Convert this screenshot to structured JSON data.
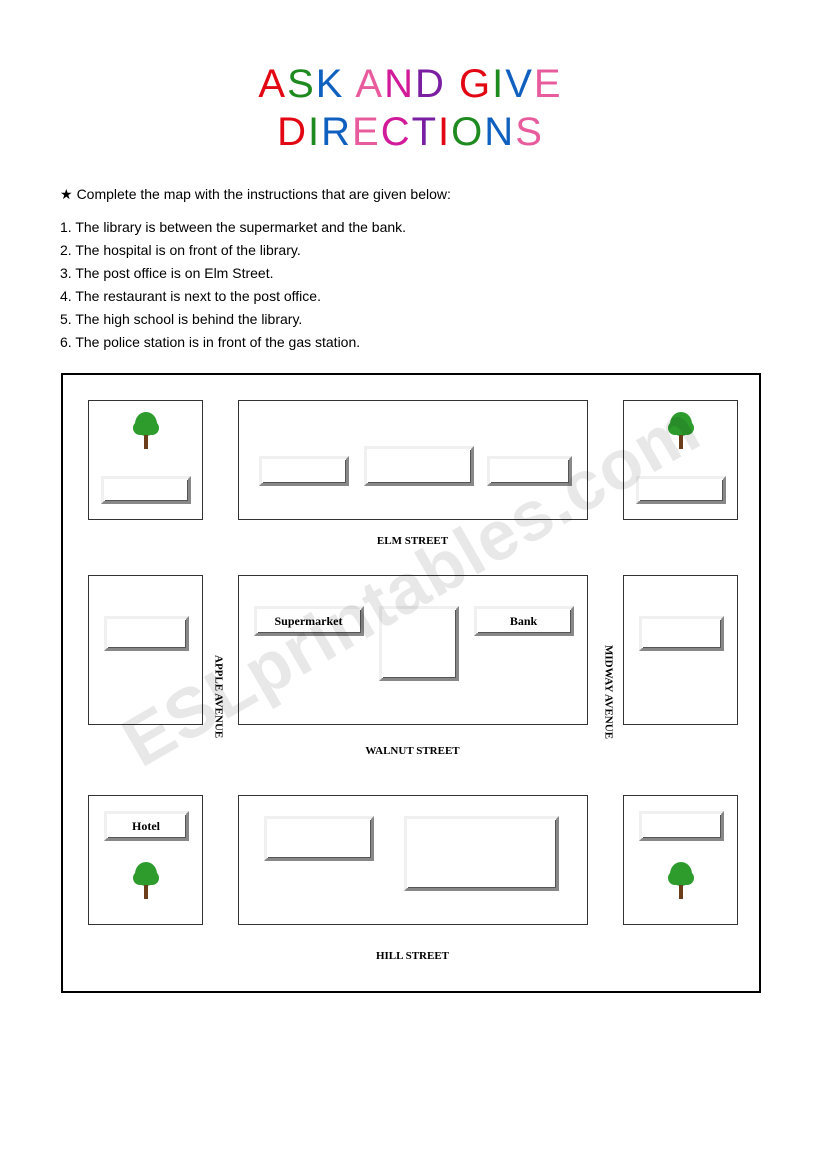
{
  "title": {
    "line1": [
      {
        "ch": "A",
        "c": "#e30613"
      },
      {
        "ch": "S",
        "c": "#1f8a1f"
      },
      {
        "ch": "K",
        "c": "#1060c0"
      },
      {
        "ch": " ",
        "c": "#000"
      },
      {
        "ch": "A",
        "c": "#e85c9e"
      },
      {
        "ch": "N",
        "c": "#d11b9a"
      },
      {
        "ch": "D",
        "c": "#7a1fa2"
      },
      {
        "ch": " ",
        "c": "#000"
      },
      {
        "ch": "G",
        "c": "#e30613"
      },
      {
        "ch": "I",
        "c": "#1f8a1f"
      },
      {
        "ch": "V",
        "c": "#1060c0"
      },
      {
        "ch": "E",
        "c": "#e85c9e"
      }
    ],
    "line2": [
      {
        "ch": "D",
        "c": "#e30613"
      },
      {
        "ch": "I",
        "c": "#1f8a1f"
      },
      {
        "ch": "R",
        "c": "#1060c0"
      },
      {
        "ch": "E",
        "c": "#e85c9e"
      },
      {
        "ch": "C",
        "c": "#d11b9a"
      },
      {
        "ch": "T",
        "c": "#7a1fa2"
      },
      {
        "ch": "I",
        "c": "#e30613"
      },
      {
        "ch": "O",
        "c": "#1f8a1f"
      },
      {
        "ch": "N",
        "c": "#1060c0"
      },
      {
        "ch": "S",
        "c": "#e85c9e"
      }
    ]
  },
  "instruction": "Complete the map with the instructions that are given below:",
  "clues": [
    "1. The library is between the supermarket and the bank.",
    "2. The hospital is on front of the library.",
    "3. The post office is on Elm Street.",
    "4. The restaurant is next to the post office.",
    "5. The high school is behind the library.",
    "6. The police station is in front of the gas station."
  ],
  "labels": {
    "supermarket": "Supermarket",
    "bank": "Bank",
    "hotel": "Hotel"
  },
  "streets": {
    "elm": "ELM STREET",
    "walnut": "WALNUT STREET",
    "hill": "HILL STREET",
    "apple": "APPLE AVENUE",
    "midway": "MIDWAY AVENUE"
  },
  "watermark": "ESLprintables.com",
  "colors": {
    "tree_canopy": "#2d9c2d",
    "tree_trunk": "#6b3d1a",
    "bevel_light": "#f0f0f0",
    "bevel_dark": "#888888"
  }
}
